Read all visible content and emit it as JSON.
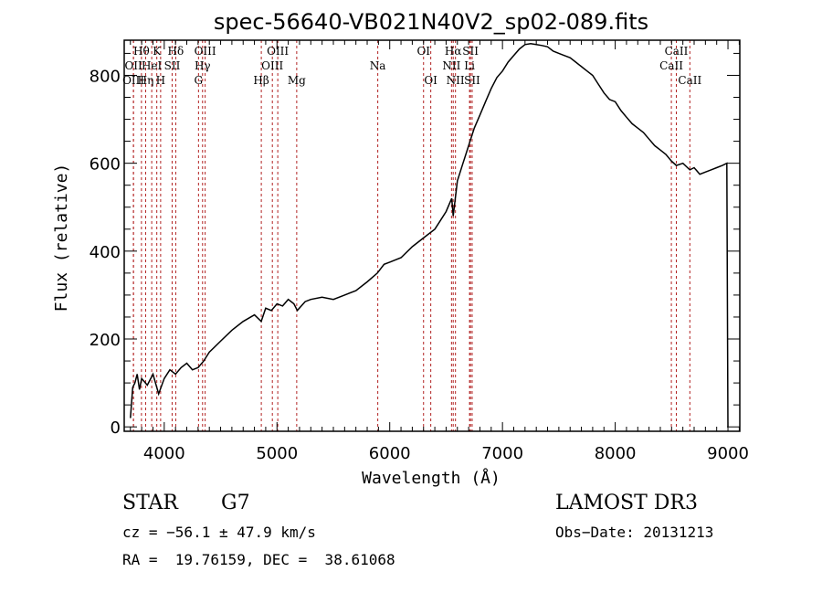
{
  "chart_data": {
    "type": "line",
    "title": "spec-56640-VB021N40V2_sp02-089.fits",
    "xlabel": "Wavelength (Å)",
    "ylabel": "Flux (relative)",
    "xlim": [
      3645,
      9105
    ],
    "ylim": [
      -10,
      880
    ],
    "xticks": [
      4000,
      5000,
      6000,
      7000,
      8000,
      9000
    ],
    "xtick_labels": [
      "4000",
      "5000",
      "6000",
      "7000",
      "8000",
      "9000"
    ],
    "yticks": [
      0,
      200,
      400,
      600,
      800
    ],
    "ytick_labels": [
      "0",
      "200",
      "400",
      "600",
      "800"
    ],
    "grid": false,
    "legend": "none",
    "line_color": "#000000",
    "marker_line_color": "#b22222",
    "series": [
      {
        "name": "spectrum",
        "x": [
          3700,
          3720,
          3740,
          3760,
          3780,
          3800,
          3850,
          3900,
          3950,
          4000,
          4050,
          4100,
          4150,
          4200,
          4250,
          4300,
          4350,
          4400,
          4500,
          4600,
          4700,
          4800,
          4860,
          4900,
          4950,
          5000,
          5050,
          5100,
          5150,
          5180,
          5250,
          5300,
          5400,
          5500,
          5600,
          5700,
          5800,
          5890,
          5950,
          6000,
          6100,
          6200,
          6300,
          6400,
          6450,
          6500,
          6550,
          6563,
          6600,
          6650,
          6700,
          6750,
          6800,
          6850,
          6900,
          6950,
          7000,
          7050,
          7100,
          7150,
          7200,
          7250,
          7300,
          7350,
          7400,
          7450,
          7500,
          7550,
          7600,
          7650,
          7700,
          7750,
          7800,
          7850,
          7900,
          7950,
          8000,
          8050,
          8100,
          8150,
          8200,
          8250,
          8300,
          8350,
          8400,
          8450,
          8498,
          8542,
          8600,
          8662,
          8700,
          8750,
          8800,
          8850,
          8900,
          8950,
          8990,
          9000
        ],
        "values": [
          20,
          90,
          100,
          120,
          85,
          110,
          95,
          120,
          75,
          110,
          130,
          120,
          135,
          145,
          130,
          135,
          150,
          170,
          195,
          220,
          240,
          255,
          240,
          270,
          265,
          280,
          275,
          290,
          280,
          265,
          285,
          290,
          295,
          290,
          300,
          310,
          330,
          350,
          370,
          375,
          385,
          410,
          430,
          450,
          470,
          490,
          520,
          480,
          560,
          600,
          640,
          680,
          710,
          740,
          770,
          795,
          810,
          830,
          845,
          860,
          870,
          872,
          870,
          868,
          865,
          855,
          850,
          845,
          840,
          830,
          820,
          810,
          800,
          780,
          760,
          745,
          740,
          720,
          705,
          690,
          680,
          670,
          655,
          640,
          630,
          620,
          605,
          595,
          600,
          585,
          590,
          575,
          580,
          585,
          590,
          595,
          600,
          0
        ]
      }
    ],
    "line_markers": [
      {
        "label": "Hθ",
        "x": 3798,
        "row": 0
      },
      {
        "label": "OII",
        "x": 3727,
        "row": 1
      },
      {
        "label": "OIII",
        "x": 3727,
        "row": 2
      },
      {
        "label": "K",
        "x": 3934,
        "row": 0
      },
      {
        "label": "HeI",
        "x": 3889,
        "row": 1
      },
      {
        "label": "Hη",
        "x": 3835,
        "row": 2
      },
      {
        "label": "Hδ",
        "x": 4102,
        "row": 0
      },
      {
        "label": "SII",
        "x": 4070,
        "row": 1
      },
      {
        "label": "H",
        "x": 3968,
        "row": 2
      },
      {
        "label": "OIII",
        "x": 4363,
        "row": 0
      },
      {
        "label": "Hγ",
        "x": 4340,
        "row": 1
      },
      {
        "label": "G",
        "x": 4304,
        "row": 2
      },
      {
        "label": "OIII",
        "x": 5007,
        "row": 0
      },
      {
        "label": "OIII",
        "x": 4959,
        "row": 1
      },
      {
        "label": "Hβ",
        "x": 4861,
        "row": 2
      },
      {
        "label": "Mg",
        "x": 5175,
        "row": 2
      },
      {
        "label": "Na",
        "x": 5894,
        "row": 1
      },
      {
        "label": "OI",
        "x": 6300,
        "row": 0
      },
      {
        "label": "OI",
        "x": 6364,
        "row": 2
      },
      {
        "label": "Hα",
        "x": 6563,
        "row": 0
      },
      {
        "label": "NII",
        "x": 6548,
        "row": 1
      },
      {
        "label": "NII",
        "x": 6583,
        "row": 2
      },
      {
        "label": "SII",
        "x": 6716,
        "row": 0
      },
      {
        "label": "Li",
        "x": 6708,
        "row": 1
      },
      {
        "label": "SII",
        "x": 6731,
        "row": 2
      },
      {
        "label": "CaII",
        "x": 8542,
        "row": 0
      },
      {
        "label": "CaII",
        "x": 8498,
        "row": 1
      },
      {
        "label": "CaII",
        "x": 8662,
        "row": 2
      }
    ]
  },
  "info": {
    "class_label": "STAR",
    "subclass_label": "G7",
    "redshift_text": "cz = −56.1 ± 47.9 km/s",
    "coords_text": "RA =  19.76159, DEC =  38.61068",
    "survey_label": "LAMOST DR3",
    "obs_date_text": "Obs−Date: 20131213"
  }
}
